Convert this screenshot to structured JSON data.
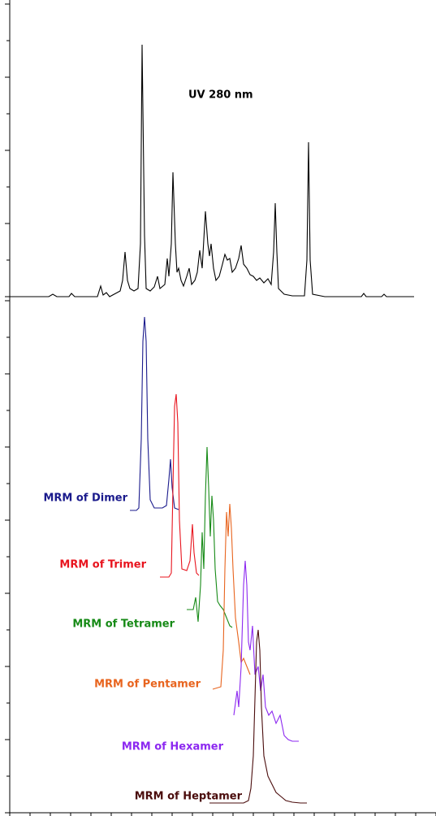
{
  "chart_data": [
    {
      "type": "line",
      "annotation": "UV 280 nm",
      "color": "#000000",
      "xlim": [
        0,
        21
      ],
      "ylim": [
        0,
        36.5
      ],
      "yticks": [
        0,
        4.5,
        9,
        13.5,
        18,
        22.5,
        27,
        31.5,
        36
      ],
      "x": [
        0,
        1.92,
        2.12,
        2.32,
        2.92,
        3.04,
        3.2,
        4.32,
        4.48,
        4.6,
        4.76,
        4.92,
        5.44,
        5.56,
        5.68,
        5.8,
        5.92,
        6.12,
        6.32,
        6.44,
        6.52,
        6.64,
        6.72,
        6.92,
        7.12,
        7.28,
        7.4,
        7.64,
        7.76,
        7.84,
        7.96,
        8.04,
        8.16,
        8.24,
        8.32,
        8.44,
        8.56,
        8.72,
        8.84,
        8.96,
        9.12,
        9.24,
        9.36,
        9.48,
        9.64,
        9.76,
        9.84,
        9.92,
        10.04,
        10.16,
        10.32,
        10.48,
        10.6,
        10.72,
        10.84,
        10.96,
        11.12,
        11.28,
        11.4,
        11.52,
        11.68,
        11.84,
        12,
        12.16,
        12.32,
        12.52,
        12.72,
        12.88,
        13,
        13.08,
        13.16,
        13.24,
        13.52,
        13.92,
        14.52,
        14.64,
        14.72,
        14.8,
        14.92,
        15.52,
        17.32,
        17.44,
        17.56,
        18.32,
        18.44,
        18.56,
        19.92
      ],
      "values": [
        0,
        0,
        0.3,
        0,
        0,
        0.4,
        0,
        0,
        1.3,
        0.2,
        0.5,
        0,
        0.7,
        2,
        5.5,
        2,
        1,
        0.7,
        1,
        6.5,
        31,
        7.5,
        1,
        0.7,
        1.2,
        2.5,
        1,
        1.5,
        4.7,
        2.5,
        6.5,
        15.3,
        6.5,
        3,
        3.5,
        2,
        1.3,
        2.5,
        3.5,
        1.5,
        2,
        3,
        5.7,
        3.5,
        10.5,
        6.5,
        5,
        6.5,
        3.5,
        2,
        2.5,
        4,
        5.2,
        4.5,
        4.7,
        3,
        3.5,
        4.7,
        6.3,
        4,
        3.5,
        2.7,
        2.5,
        2,
        2.3,
        1.7,
        2.2,
        1.5,
        5.5,
        11.5,
        5.5,
        1,
        0.3,
        0.1,
        0.1,
        4.5,
        19,
        4.5,
        0.3,
        0,
        0,
        0.4,
        0,
        0,
        0.3,
        0,
        0
      ]
    },
    {
      "type": "line",
      "xlim": [
        0,
        21
      ],
      "xticks": [
        0,
        1,
        2,
        3,
        4,
        5,
        6,
        7,
        8,
        9,
        10,
        11,
        12,
        13,
        14,
        15,
        16,
        17,
        18,
        19,
        20,
        21
      ],
      "ylim": [
        0,
        63.5
      ],
      "yticks": [
        0,
        4.5,
        9,
        13.5,
        18,
        22.5,
        27,
        31.5,
        36,
        40.5,
        45,
        49.5,
        54,
        58.5,
        63
      ],
      "series": [
        {
          "name": "MRM of Dimer",
          "color": "#1a1a8c",
          "x": [
            5.92,
            6.24,
            6.36,
            6.48,
            6.56,
            6.64,
            6.72,
            6.8,
            6.92,
            7.12,
            7.52,
            7.72,
            7.84,
            7.92,
            8,
            8.12,
            8.32
          ],
          "values": [
            37.2,
            37.2,
            37.5,
            46,
            58,
            61,
            58,
            46,
            38.5,
            37.5,
            37.5,
            37.8,
            41,
            43.5,
            40,
            37.5,
            37.3
          ]
        },
        {
          "name": "MRM of Trimer",
          "color": "#e8141e",
          "x": [
            7.4,
            7.84,
            7.96,
            8.04,
            8.12,
            8.2,
            8.28,
            8.36,
            8.48,
            8.72,
            8.88,
            9,
            9.08,
            9.2,
            9.32
          ],
          "values": [
            29,
            29,
            29.5,
            40,
            50,
            51.5,
            48,
            36,
            30,
            29.8,
            31,
            35.5,
            32,
            29.5,
            29.2
          ]
        },
        {
          "name": "MRM of Tetramer",
          "color": "#168a16",
          "x": [
            8.72,
            9.04,
            9.16,
            9.28,
            9.4,
            9.48,
            9.56,
            9.64,
            9.72,
            9.8,
            9.88,
            9.96,
            10.04,
            10.12,
            10.24,
            10.36,
            10.52,
            10.68,
            10.84,
            10.96
          ],
          "values": [
            25,
            25,
            26.5,
            23.5,
            28,
            34.5,
            30,
            39,
            45,
            40,
            34,
            39,
            36,
            30,
            26,
            25.5,
            25,
            24,
            23,
            22.8
          ]
        },
        {
          "name": "MRM of Pentamer",
          "color": "#e8641e",
          "x": [
            10,
            10.4,
            10.52,
            10.6,
            10.68,
            10.76,
            10.84,
            10.92,
            11,
            11.12,
            11.28,
            11.4,
            11.52,
            11.68,
            11.84
          ],
          "values": [
            15.2,
            15.5,
            20,
            30,
            37,
            34,
            38,
            35,
            30,
            24,
            21,
            18.5,
            19,
            18,
            17
          ]
        },
        {
          "name": "MRM of Hexamer",
          "color": "#8c28f0",
          "x": [
            11.04,
            11.2,
            11.28,
            11.4,
            11.52,
            11.6,
            11.68,
            11.76,
            11.84,
            11.96,
            12.08,
            12.24,
            12.36,
            12.48,
            12.6,
            12.76,
            12.92,
            13.12,
            13.32,
            13.52,
            13.72,
            13.92,
            14.24
          ],
          "values": [
            12,
            15,
            13,
            18,
            28,
            31,
            28,
            21,
            20,
            23,
            17,
            18,
            15,
            17,
            13,
            12,
            12.5,
            11,
            12,
            9.5,
            9,
            8.8,
            8.8
          ]
        },
        {
          "name": "MRM of Heptamer",
          "color": "#4a0c0c",
          "x": [
            9.84,
            11.52,
            11.76,
            11.88,
            12,
            12.08,
            12.16,
            12.24,
            12.32,
            12.4,
            12.52,
            12.72,
            12.92,
            13.12,
            13.36,
            13.6,
            13.92,
            14.32,
            14.64
          ],
          "values": [
            1.2,
            1.2,
            1.5,
            3,
            7,
            14,
            21,
            22.5,
            20,
            13,
            7,
            4.5,
            3.5,
            2.5,
            2,
            1.5,
            1.3,
            1.2,
            1.2
          ]
        }
      ]
    }
  ]
}
